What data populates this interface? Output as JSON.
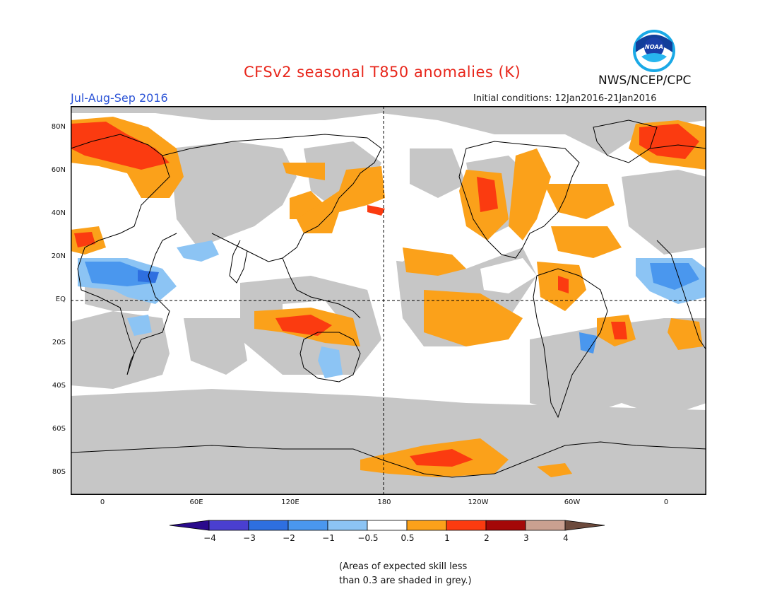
{
  "header": {
    "title": "CFSv2 seasonal T850 anomalies (K)",
    "period": "Jul-Aug-Sep 2016",
    "initial_conditions": "Initial conditions: 12Jan2016-21Jan2016",
    "agency": "NWS/NCEP/CPC",
    "logo_text": "NOAA"
  },
  "axes": {
    "lat_labels": [
      "80N",
      "60N",
      "40N",
      "20N",
      "EQ",
      "20S",
      "40S",
      "60S",
      "80S"
    ],
    "lon_labels": [
      "0",
      "60E",
      "120E",
      "180",
      "120W",
      "60W",
      "0"
    ]
  },
  "colorbar": {
    "colors": [
      "#2a0a8c",
      "#4a3fd0",
      "#2e6fe0",
      "#4a97ee",
      "#8cc4f4",
      "#ffffff",
      "#fba11a",
      "#fb3b10",
      "#a40808",
      "#caa090",
      "#6c4a3c"
    ],
    "labels": [
      "−4",
      "−3",
      "−2",
      "−1",
      "−0.5",
      "0.5",
      "1",
      "2",
      "3",
      "4"
    ]
  },
  "map_colors": {
    "ocean_grey": "#c6c6c6",
    "orange": "#fba11a",
    "red": "#fb3b10",
    "dark_red": "#d71d0e",
    "light_blue": "#8cc4f4",
    "mid_blue": "#4a97ee",
    "dark_blue": "#2e6fe0"
  },
  "footnote": {
    "line1": "(Areas of expected skill less",
    "line2": "than 0.3 are shaded in grey.)"
  }
}
